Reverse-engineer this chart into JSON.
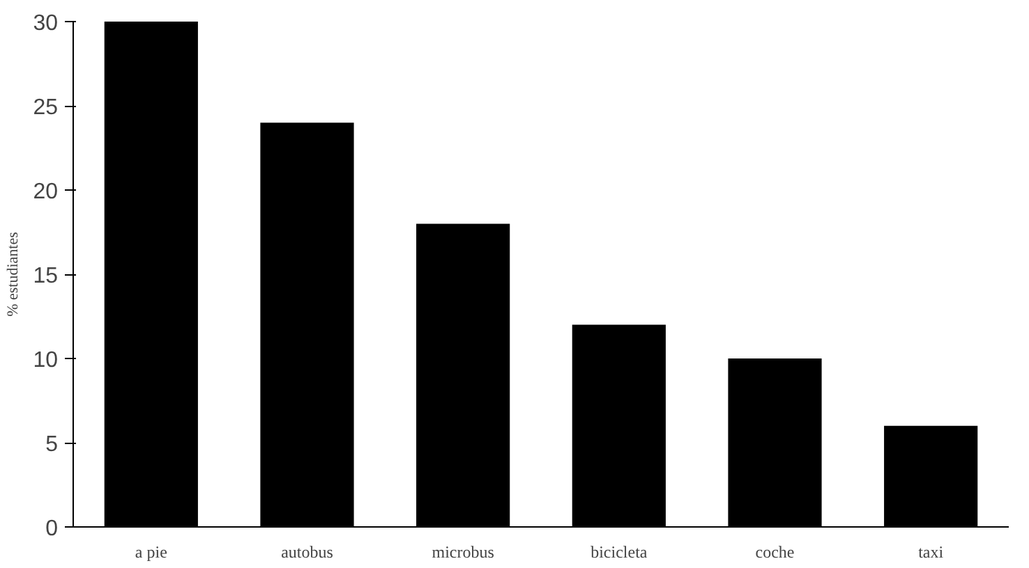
{
  "chart_data": {
    "type": "bar",
    "ylabel": "% estudiantes",
    "categories": [
      "a pie",
      "autobus",
      "microbus",
      "bicicleta",
      "coche",
      "taxi"
    ],
    "values": [
      30,
      24,
      18,
      12,
      10,
      6
    ],
    "color": "#000000",
    "ylim": [
      0,
      30
    ],
    "yticks": [
      0,
      5,
      10,
      15,
      20,
      25,
      30
    ],
    "grid": false
  }
}
